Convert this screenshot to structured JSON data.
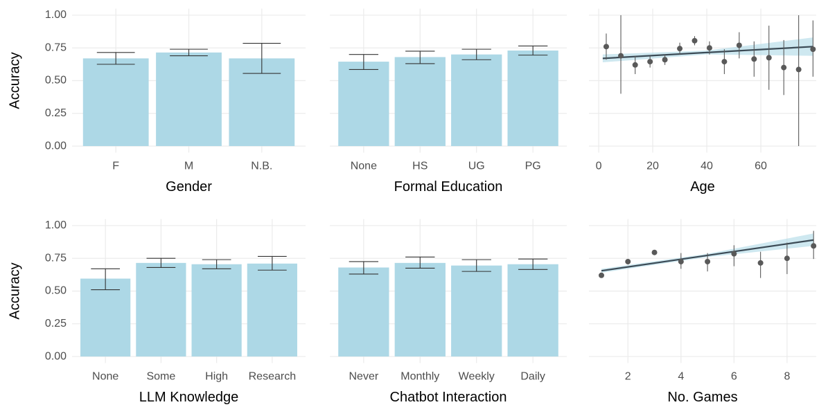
{
  "chart_data": [
    {
      "type": "bar",
      "xlabel": "Gender",
      "ylabel": "Accuracy",
      "categories": [
        "F",
        "M",
        "N.B."
      ],
      "values": [
        0.67,
        0.715,
        0.67
      ],
      "error_low": [
        0.625,
        0.69,
        0.555
      ],
      "error_high": [
        0.715,
        0.74,
        0.785
      ],
      "color": "#add8e6",
      "error_color": "#333333",
      "ylim": [
        -0.05,
        1.05
      ],
      "yticks": [
        {
          "value": 0,
          "label": "0.00"
        },
        {
          "value": 0.25,
          "label": "0.25"
        },
        {
          "value": 0.5,
          "label": "0.50"
        },
        {
          "value": 0.75,
          "label": "0.75"
        },
        {
          "value": 1,
          "label": "1.00"
        }
      ],
      "grid": true
    },
    {
      "type": "bar",
      "xlabel": "Formal Education",
      "categories": [
        "None",
        "HS",
        "UG",
        "PG"
      ],
      "values": [
        0.645,
        0.68,
        0.7,
        0.73
      ],
      "error_low": [
        0.585,
        0.63,
        0.66,
        0.695
      ],
      "error_high": [
        0.7,
        0.725,
        0.74,
        0.765
      ],
      "color": "#add8e6",
      "error_color": "#333333",
      "ylim": [
        -0.05,
        1.05
      ],
      "yticks": [
        {
          "value": 0,
          "label": "0.00"
        },
        {
          "value": 0.25,
          "label": "0.25"
        },
        {
          "value": 0.5,
          "label": "0.50"
        },
        {
          "value": 0.75,
          "label": "0.75"
        },
        {
          "value": 1,
          "label": "1.00"
        }
      ],
      "grid": true
    },
    {
      "type": "scatter",
      "xlabel": "Age",
      "x": [
        2.8,
        8.2,
        13.5,
        19,
        24.5,
        30,
        35.5,
        41,
        46.5,
        52,
        57.5,
        63,
        68.5,
        74,
        79.3
      ],
      "values": [
        0.76,
        0.69,
        0.62,
        0.645,
        0.66,
        0.745,
        0.805,
        0.75,
        0.645,
        0.77,
        0.665,
        0.675,
        0.6,
        0.585,
        0.74
      ],
      "error_low": [
        0.66,
        0.4,
        0.55,
        0.6,
        0.62,
        0.7,
        0.77,
        0.7,
        0.55,
        0.67,
        0.53,
        0.43,
        0.39,
        0,
        0.53
      ],
      "error_high": [
        0.86,
        1,
        0.69,
        0.69,
        0.7,
        0.79,
        0.84,
        0.8,
        0.74,
        0.87,
        0.8,
        0.92,
        0.81,
        1,
        0.96
      ],
      "trend": {
        "x": [
          1.5,
          40,
          79.3
        ],
        "values": [
          0.67,
          0.715,
          0.76
        ],
        "low": [
          0.64,
          0.7,
          0.69
        ],
        "high": [
          0.7,
          0.73,
          0.83
        ]
      },
      "color": "#595959",
      "trend_color": "#3b4a55",
      "band_color": "#add8e6",
      "xlim": [
        -3.6,
        80.5
      ],
      "xticks": [
        0,
        20,
        40,
        60
      ],
      "ylim": [
        -0.05,
        1.05
      ],
      "yticks": [
        {
          "value": 0,
          "label": "0.00"
        },
        {
          "value": 0.25,
          "label": "0.25"
        },
        {
          "value": 0.5,
          "label": "0.50"
        },
        {
          "value": 0.75,
          "label": "0.75"
        },
        {
          "value": 1,
          "label": "1.00"
        }
      ],
      "grid": true
    },
    {
      "type": "bar",
      "xlabel": "LLM Knowledge",
      "ylabel": "Accuracy",
      "categories": [
        "None",
        "Some",
        "High",
        "Research"
      ],
      "values": [
        0.595,
        0.715,
        0.705,
        0.71
      ],
      "error_low": [
        0.51,
        0.68,
        0.67,
        0.66
      ],
      "error_high": [
        0.67,
        0.75,
        0.74,
        0.765
      ],
      "color": "#add8e6",
      "error_color": "#333333",
      "ylim": [
        -0.05,
        1.05
      ],
      "yticks": [
        {
          "value": 0,
          "label": "0.00"
        },
        {
          "value": 0.25,
          "label": "0.25"
        },
        {
          "value": 0.5,
          "label": "0.50"
        },
        {
          "value": 0.75,
          "label": "0.75"
        },
        {
          "value": 1,
          "label": "1.00"
        }
      ],
      "grid": true
    },
    {
      "type": "bar",
      "xlabel": "Chatbot Interaction",
      "categories": [
        "Never",
        "Monthly",
        "Weekly",
        "Daily"
      ],
      "values": [
        0.68,
        0.715,
        0.695,
        0.705
      ],
      "error_low": [
        0.63,
        0.675,
        0.65,
        0.665
      ],
      "error_high": [
        0.725,
        0.76,
        0.74,
        0.745
      ],
      "color": "#add8e6",
      "error_color": "#333333",
      "ylim": [
        -0.05,
        1.05
      ],
      "yticks": [
        {
          "value": 0,
          "label": "0.00"
        },
        {
          "value": 0.25,
          "label": "0.25"
        },
        {
          "value": 0.5,
          "label": "0.50"
        },
        {
          "value": 0.75,
          "label": "0.75"
        },
        {
          "value": 1,
          "label": "1.00"
        }
      ],
      "grid": true
    },
    {
      "type": "scatter",
      "xlabel": "No. Games",
      "x": [
        1,
        2,
        3,
        4,
        5,
        6,
        7,
        8,
        9
      ],
      "values": [
        0.62,
        0.725,
        0.795,
        0.725,
        0.725,
        0.785,
        0.715,
        0.75,
        0.845
      ],
      "error_low": [
        0.61,
        0.71,
        0.78,
        0.67,
        0.65,
        0.69,
        0.6,
        0.63,
        0.745
      ],
      "error_high": [
        0.63,
        0.74,
        0.81,
        0.79,
        0.79,
        0.85,
        0.8,
        0.87,
        0.96
      ],
      "trend": {
        "x": [
          1,
          5,
          9
        ],
        "values": [
          0.655,
          0.7725,
          0.89
        ],
        "low": [
          0.64,
          0.76,
          0.845
        ],
        "high": [
          0.67,
          0.785,
          0.94
        ]
      },
      "color": "#595959",
      "trend_color": "#3b4a55",
      "band_color": "#add8e6",
      "xlim": [
        0.53,
        9.1
      ],
      "xticks": [
        2,
        4,
        6,
        8
      ],
      "ylim": [
        -0.05,
        1.05
      ],
      "yticks": [
        {
          "value": 0,
          "label": "0.00"
        },
        {
          "value": 0.25,
          "label": "0.25"
        },
        {
          "value": 0.5,
          "label": "0.50"
        },
        {
          "value": 0.75,
          "label": "0.75"
        },
        {
          "value": 1,
          "label": "1.00"
        }
      ],
      "grid": true
    }
  ]
}
